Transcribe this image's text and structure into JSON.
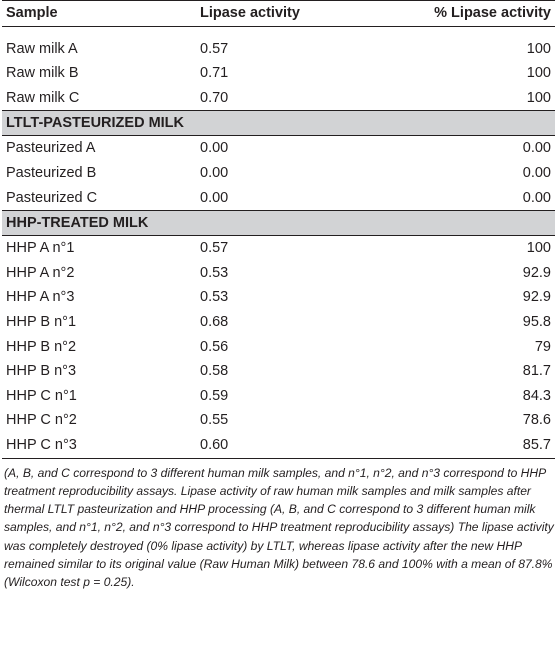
{
  "table": {
    "headers": [
      "Sample",
      "Lipase activity",
      "% Lipase activity"
    ],
    "groups": [
      {
        "title": "",
        "rows": [
          [
            "Raw milk A",
            "0.57",
            "100"
          ],
          [
            "Raw milk B",
            "0.71",
            "100"
          ],
          [
            "Raw milk C",
            "0.70",
            "100"
          ]
        ]
      },
      {
        "title": "LTLT-PASTEURIZED MILK",
        "rows": [
          [
            "Pasteurized A",
            "0.00",
            "0.00"
          ],
          [
            "Pasteurized B",
            "0.00",
            "0.00"
          ],
          [
            "Pasteurized C",
            "0.00",
            "0.00"
          ]
        ]
      },
      {
        "title": "HHP-TREATED MILK",
        "rows": [
          [
            "HHP A n°1",
            "0.57",
            "100"
          ],
          [
            "HHP A n°2",
            "0.53",
            "92.9"
          ],
          [
            "HHP A n°3",
            "0.53",
            "92.9"
          ],
          [
            "HHP B n°1",
            "0.68",
            "95.8"
          ],
          [
            "HHP B n°2",
            "0.56",
            "79"
          ],
          [
            "HHP B n°3",
            "0.58",
            "81.7"
          ],
          [
            "HHP C n°1",
            "0.59",
            "84.3"
          ],
          [
            "HHP C n°2",
            "0.55",
            "78.6"
          ],
          [
            "HHP C n°3",
            "0.60",
            "85.7"
          ]
        ]
      }
    ]
  },
  "footnote": "(A, B, and C correspond to 3 different human milk samples, and n°1, n°2, and n°3 correspond to HHP treatment reproducibility assays. Lipase activity of raw human milk samples and milk samples after thermal LTLT pasteurization and HHP processing (A, B, and C correspond to 3 different human milk samples, and n°1, n°2, and n°3 correspond to HHP treatment reproducibility assays) The lipase activity was completely destroyed (0% lipase activity) by LTLT, whereas lipase activity after the new HHP remained similar to its original value (Raw Human Milk) between 78.6 and 100% with a mean of 87.8% (Wilcoxon test p = 0.25)."
}
